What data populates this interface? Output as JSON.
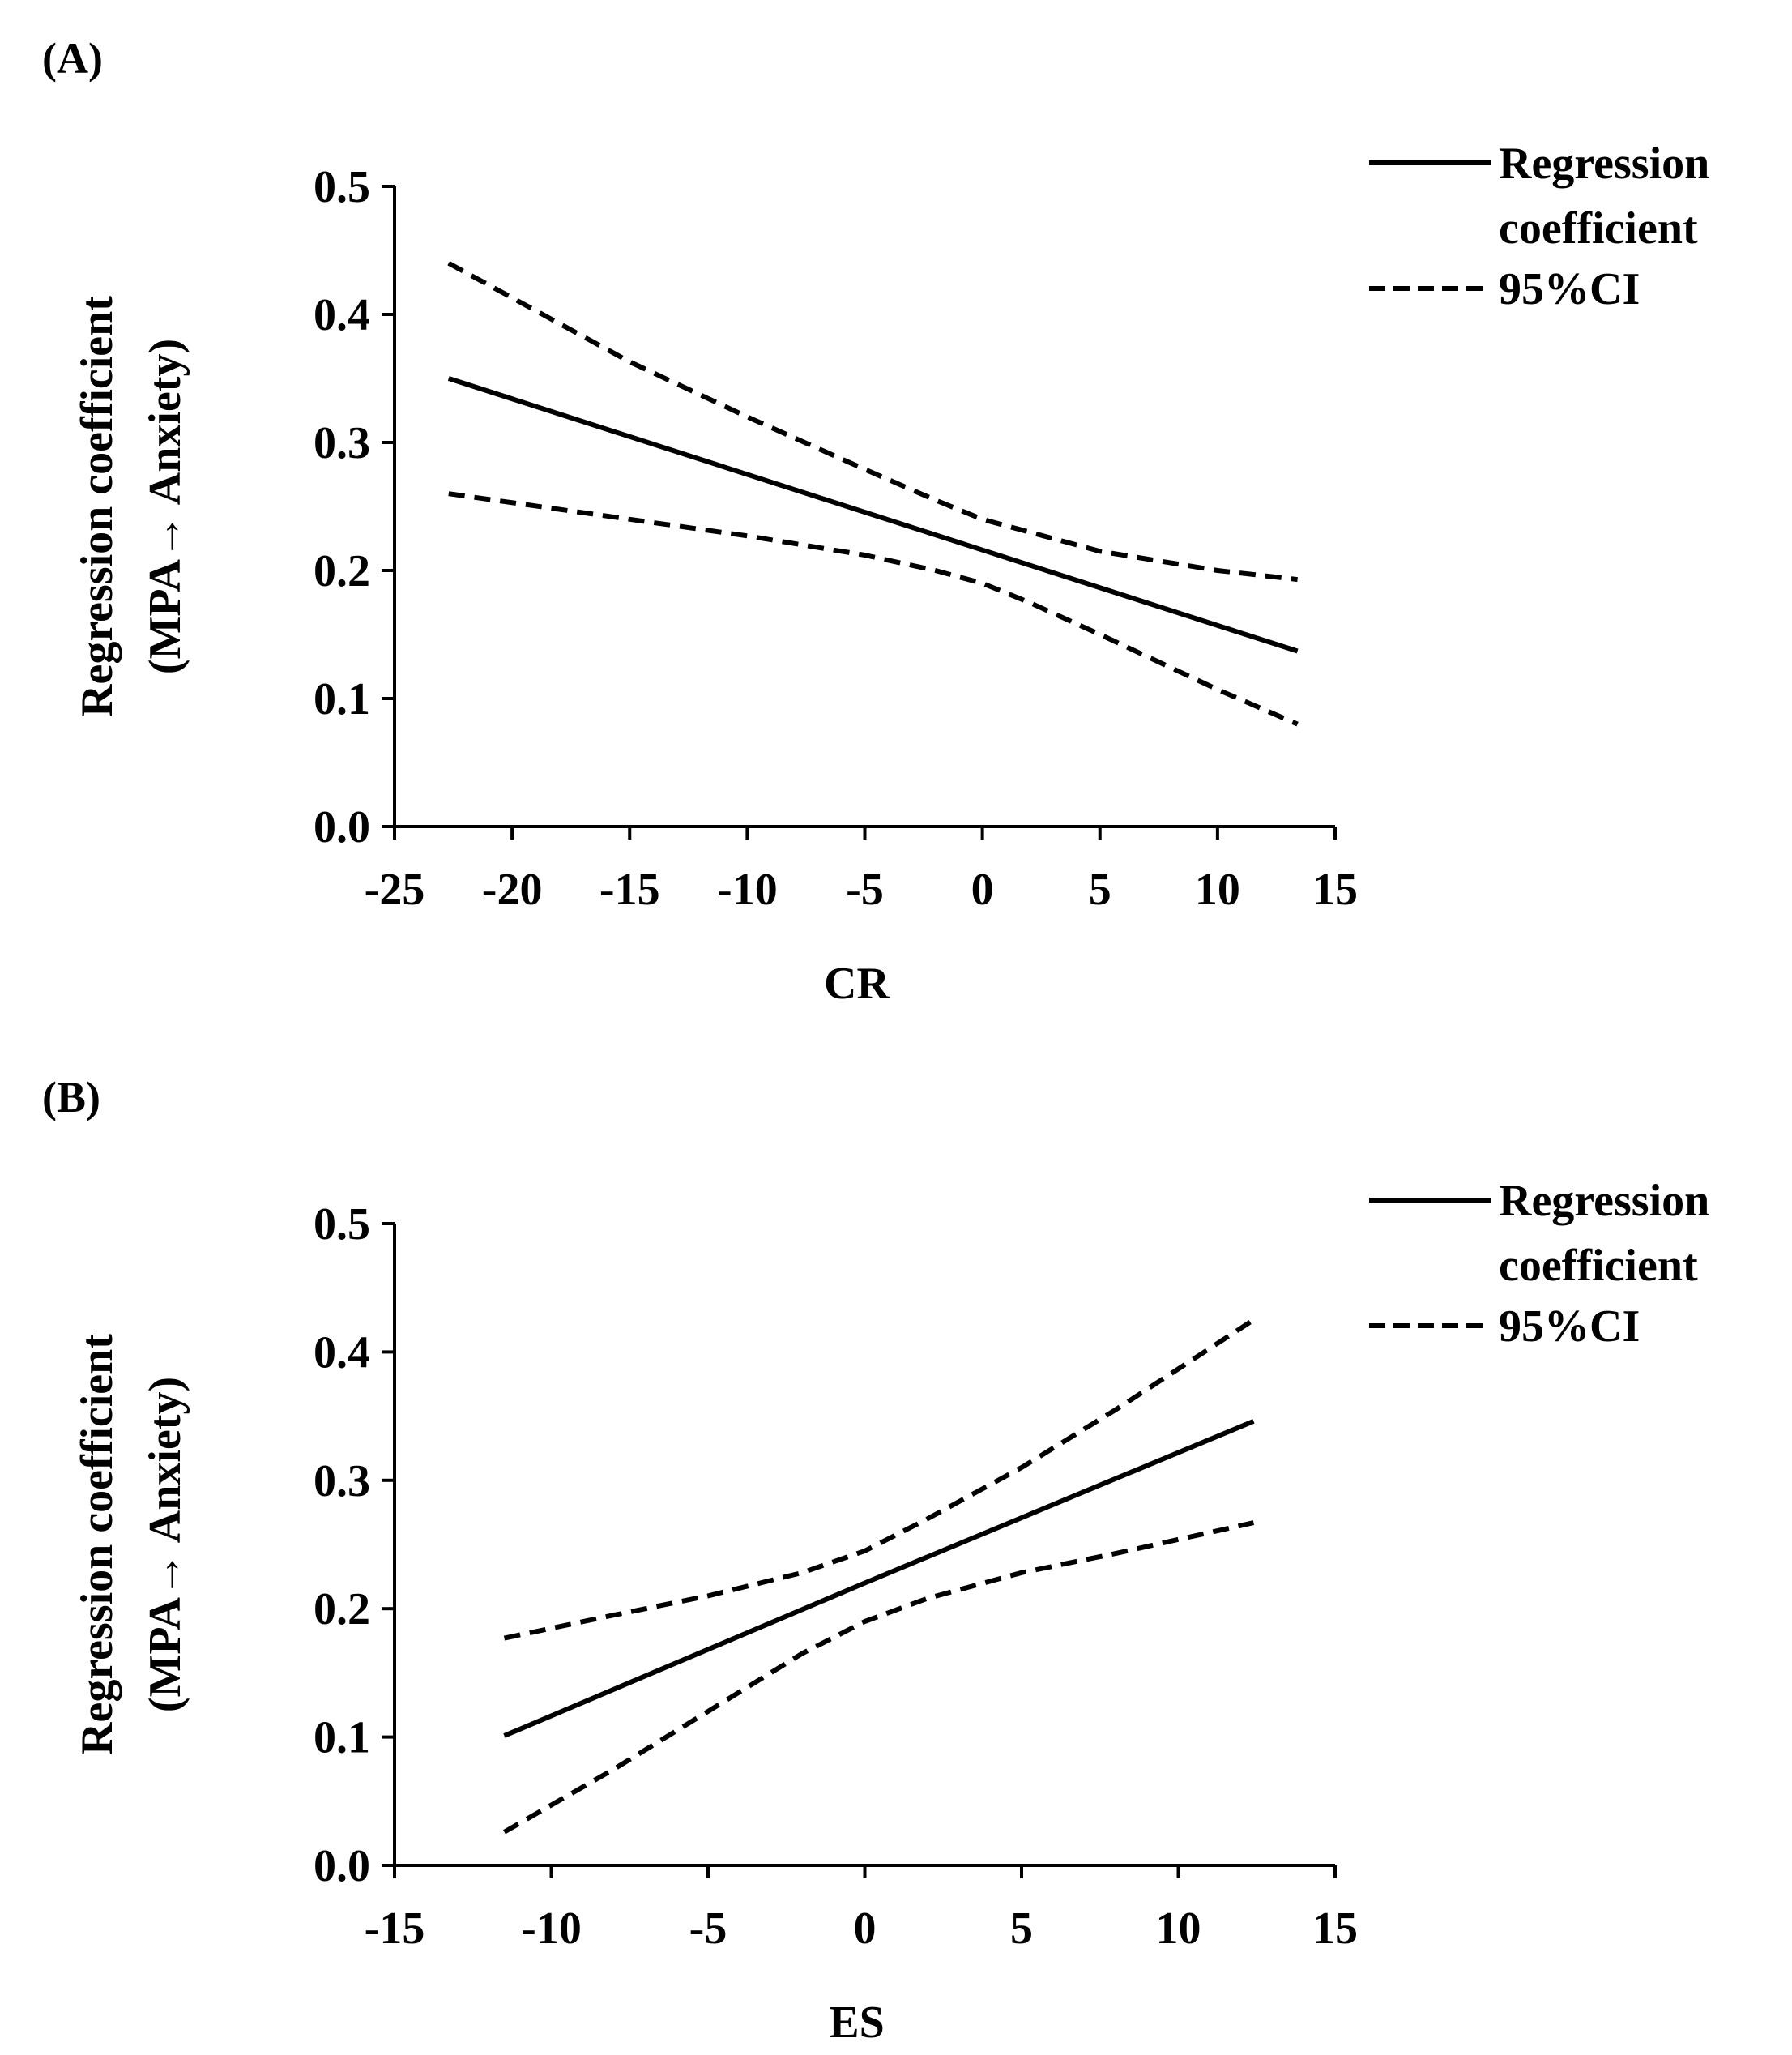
{
  "colors": {
    "line": "#000000",
    "background": "#ffffff"
  },
  "chart_data": [
    {
      "type": "line",
      "panel_label": "(A)",
      "xlabel": "CR",
      "ylabel_lines": [
        "Regression coefficient",
        "(MPA→ Anxiety)"
      ],
      "xlim": [
        -25,
        15
      ],
      "ylim": [
        0,
        0.5
      ],
      "xticks": [
        -25,
        -20,
        -15,
        -10,
        -5,
        0,
        5,
        10,
        15
      ],
      "xtick_labels": [
        "-25",
        "-20",
        "-15",
        "-10",
        "-5",
        "0",
        "5",
        "10",
        "15"
      ],
      "yticks": [
        0,
        0.1,
        0.2,
        0.3,
        0.4,
        0.5
      ],
      "ytick_labels": [
        "0.0",
        "0.1",
        "0.2",
        "0.3",
        "0.4",
        "0.5"
      ],
      "legend": {
        "position": "top-right",
        "entries": [
          {
            "label_lines": [
              "Regression",
              "coefficient"
            ],
            "style": "solid"
          },
          {
            "label_lines": [
              "95%CI"
            ],
            "style": "dashed"
          }
        ]
      },
      "series": [
        {
          "name": "Regression coefficient",
          "style": "solid",
          "x": [
            -22.7,
            0,
            13.4
          ],
          "y": [
            0.35,
            0.216,
            0.137
          ]
        },
        {
          "name": "95%CI upper",
          "style": "dashed",
          "x": [
            -22.7,
            -15,
            -10,
            -5,
            -2,
            0,
            2,
            5,
            10,
            13.4
          ],
          "y": [
            0.44,
            0.363,
            0.32,
            0.279,
            0.255,
            0.24,
            0.23,
            0.215,
            0.2,
            0.193
          ]
        },
        {
          "name": "95%CI lower",
          "style": "dashed",
          "x": [
            -22.7,
            -15,
            -10,
            -5,
            -2,
            0,
            2,
            5,
            10,
            13.4
          ],
          "y": [
            0.26,
            0.24,
            0.227,
            0.212,
            0.2,
            0.19,
            0.175,
            0.15,
            0.107,
            0.08
          ]
        }
      ]
    },
    {
      "type": "line",
      "panel_label": "(B)",
      "xlabel": "ES",
      "ylabel_lines": [
        "Regression coefficient",
        "(MPA→ Anxiety)"
      ],
      "xlim": [
        -15,
        15
      ],
      "ylim": [
        0,
        0.5
      ],
      "xticks": [
        -15,
        -10,
        -5,
        0,
        5,
        10,
        15
      ],
      "xtick_labels": [
        "-15",
        "-10",
        "-5",
        "0",
        "5",
        "10",
        "15"
      ],
      "yticks": [
        0,
        0.1,
        0.2,
        0.3,
        0.4,
        0.5
      ],
      "ytick_labels": [
        "0.0",
        "0.1",
        "0.2",
        "0.3",
        "0.4",
        "0.5"
      ],
      "legend": {
        "position": "top-right",
        "entries": [
          {
            "label_lines": [
              "Regression",
              "coefficient"
            ],
            "style": "solid"
          },
          {
            "label_lines": [
              "95%CI"
            ],
            "style": "dashed"
          }
        ]
      },
      "series": [
        {
          "name": "Regression coefficient",
          "style": "solid",
          "x": [
            -11.5,
            0,
            12.4
          ],
          "y": [
            0.101,
            0.22,
            0.346
          ]
        },
        {
          "name": "95%CI upper",
          "style": "dashed",
          "x": [
            -11.5,
            -8,
            -5,
            -2,
            0,
            2,
            5,
            8,
            12.4
          ],
          "y": [
            0.177,
            0.195,
            0.21,
            0.228,
            0.245,
            0.27,
            0.31,
            0.355,
            0.425
          ]
        },
        {
          "name": "95%CI lower",
          "style": "dashed",
          "x": [
            -11.5,
            -8,
            -5,
            -2,
            0,
            2,
            5,
            8,
            12.4
          ],
          "y": [
            0.026,
            0.075,
            0.12,
            0.165,
            0.19,
            0.208,
            0.228,
            0.243,
            0.267
          ]
        }
      ]
    }
  ]
}
